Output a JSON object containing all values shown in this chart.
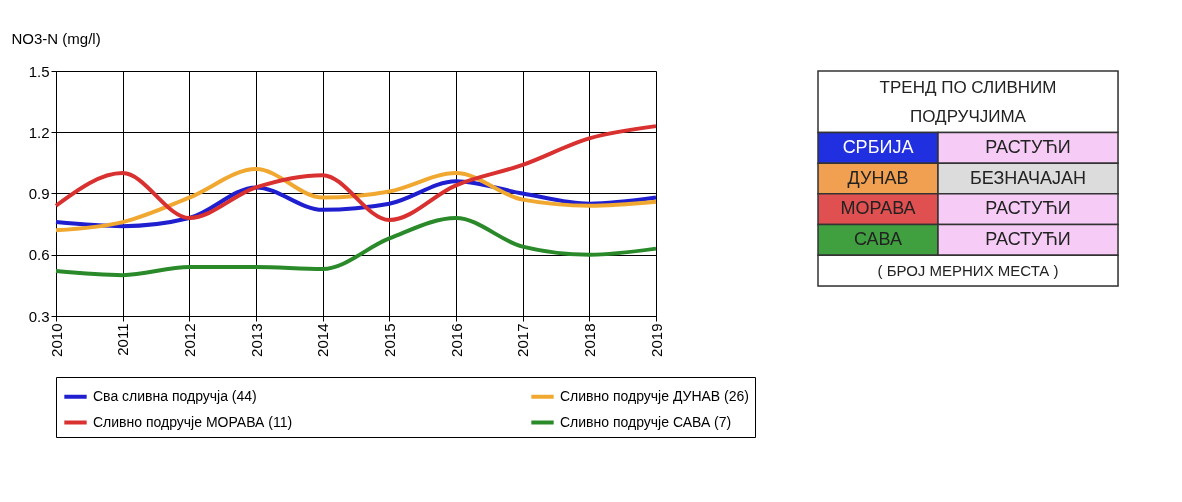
{
  "chart_data": [
    {
      "type": "line",
      "ylabel": "NO3-N  (mg/l)",
      "x": [
        2010,
        2011,
        2012,
        2013,
        2014,
        2015,
        2016,
        2017,
        2018,
        2019
      ],
      "xlim": [
        2010,
        2019
      ],
      "xticks": [
        2010,
        2011,
        2012,
        2013,
        2014,
        2015,
        2016,
        2017,
        2018,
        2019
      ],
      "ylim": [
        0.3,
        1.5
      ],
      "yticks": [
        0.3,
        0.6,
        0.9,
        1.2,
        1.5
      ],
      "grid": true,
      "legend": "bottom",
      "marker": "none",
      "line_style": "solid",
      "series": [
        {
          "name": "Сва сливна подручја (44)",
          "color": "#1f1fd0",
          "values": [
            0.76,
            0.74,
            0.78,
            0.93,
            0.82,
            0.85,
            0.96,
            0.9,
            0.85,
            0.88
          ]
        },
        {
          "name": "Сливно подручје ДУНАВ (26)",
          "color": "#f0a830",
          "values": [
            0.72,
            0.76,
            0.88,
            1.02,
            0.88,
            0.91,
            1.0,
            0.87,
            0.84,
            0.86
          ]
        },
        {
          "name": "Сливно подручје МОРАВА (11)",
          "color": "#d93030",
          "values": [
            0.84,
            1.0,
            0.78,
            0.93,
            0.99,
            0.77,
            0.94,
            1.04,
            1.17,
            1.23
          ]
        },
        {
          "name": "Сливно подручје САВА (7)",
          "color": "#2a8a2a",
          "values": [
            0.52,
            0.5,
            0.54,
            0.54,
            0.53,
            0.68,
            0.78,
            0.64,
            0.6,
            0.63
          ]
        }
      ]
    },
    {
      "type": "other",
      "title": "ТРЕНД ПО СЛИВНИМ ПОДРУЧЈИМА",
      "categories": [
        "СРБИЈА",
        "ДУНАВ",
        "МОРАВА",
        "САВА"
      ],
      "colors": [
        "#2030e0",
        "#f0a050",
        "#e05050",
        "#40a040"
      ],
      "value_labels": [
        "РАСТУЋИ",
        "БЕЗНАЧАЈАН",
        "РАСТУЋИ",
        "РАСТУЋИ"
      ],
      "annotations": [
        "( БРОЈ МЕРНИХ МЕСТА )"
      ]
    }
  ]
}
